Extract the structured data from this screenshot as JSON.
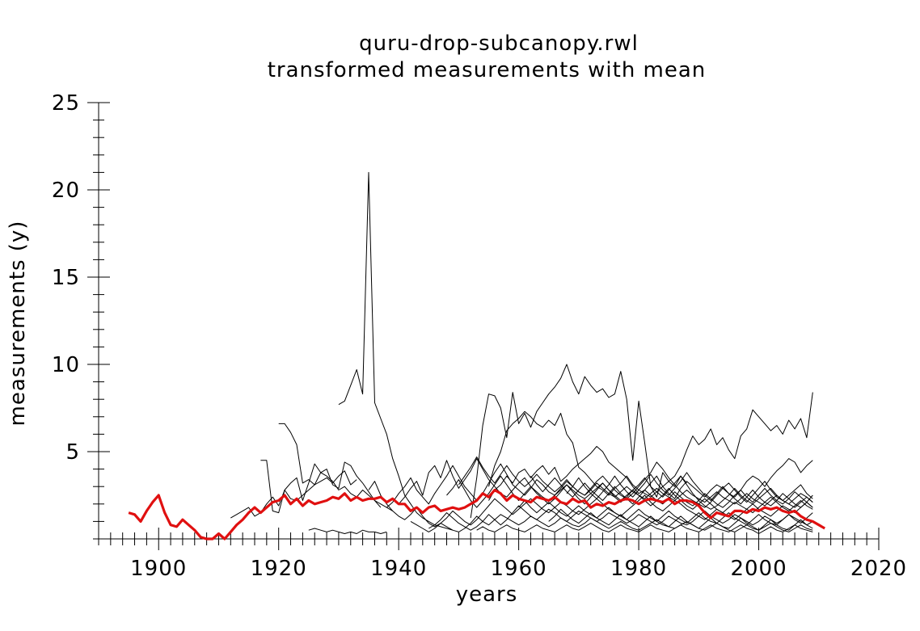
{
  "chart_data": {
    "type": "line",
    "title": "quru-drop-subcanopy.rwl",
    "subtitle": "transformed measurements with mean",
    "xlabel": "years",
    "ylabel": "measurements (y)",
    "xlim": [
      1890,
      2020
    ],
    "ylim": [
      0,
      25
    ],
    "x_ticks": [
      "1900",
      "1920",
      "1940",
      "1960",
      "1980",
      "2000",
      "2020"
    ],
    "y_ticks": [
      "5",
      "10",
      "15",
      "20",
      "25"
    ],
    "grid": false,
    "colors": {
      "series": "#000000",
      "mean": "#e01010"
    },
    "series": [
      {
        "start": 1930,
        "values": [
          7.7,
          7.9,
          8.8,
          9.7,
          8.3,
          21.0,
          7.8,
          6.9,
          6.0,
          4.6,
          3.6,
          2.5,
          2.0,
          1.5,
          1.2,
          1.0,
          0.8,
          0.7,
          0.6,
          0.5
        ]
      },
      {
        "start": 1920,
        "values": [
          6.6,
          6.6,
          6.1,
          5.4,
          3.2,
          3.4,
          3.1,
          3.8,
          3.6,
          3.3,
          2.8,
          3.0,
          2.6,
          2.4,
          2.8,
          2.5,
          2.2,
          2.0,
          1.8,
          1.6
        ]
      },
      {
        "start": 1917,
        "values": [
          4.5,
          4.5,
          1.6,
          1.5,
          2.8,
          3.2,
          3.5,
          2.2,
          3.2,
          4.3,
          3.8,
          4.0,
          3.1,
          2.9,
          4.4,
          4.2,
          3.6,
          3.2,
          2.7,
          2.2,
          1.8
        ]
      },
      {
        "start": 1912,
        "values": [
          1.2,
          1.4,
          1.6,
          1.8,
          1.3,
          1.5,
          2.0,
          2.4,
          1.9,
          2.8,
          2.3,
          2.2,
          2.5,
          2.8,
          3.1,
          3.3,
          3.5,
          3.2,
          3.6,
          3.9,
          3.1,
          3.4
        ]
      },
      {
        "start": 1925,
        "values": [
          0.5,
          0.6,
          0.5,
          0.4,
          0.5,
          0.4,
          0.3,
          0.4,
          0.3,
          0.5,
          0.4,
          0.4,
          0.3,
          0.4
        ]
      },
      {
        "start": 1952,
        "values": [
          1.2,
          3.5,
          6.5,
          8.3,
          8.2,
          7.5,
          5.8,
          8.4,
          6.6,
          7.2,
          6.4,
          7.3,
          7.8,
          8.3,
          8.7,
          9.2,
          10.0,
          9.0,
          8.3,
          9.3,
          8.8,
          8.4,
          8.6,
          8.1,
          8.3,
          9.6,
          8.0,
          4.5,
          7.9,
          5.5,
          3.0,
          2.4,
          3.8,
          3.3,
          3.0,
          3.6,
          3.2
        ]
      },
      {
        "start": 1955,
        "values": [
          3.0,
          4.2,
          5.0,
          6.2,
          6.6,
          6.9,
          7.3,
          7.0,
          6.6,
          6.4,
          6.8,
          6.5,
          7.2,
          6.0,
          5.5,
          4.1,
          3.8,
          3.4,
          3.0,
          2.8,
          2.5,
          2.9,
          3.2,
          3.6,
          3.1,
          2.8,
          2.6,
          2.4,
          2.7,
          3.0,
          3.3,
          3.6,
          4.2,
          5.1,
          5.9,
          5.4,
          5.7,
          6.3,
          5.4,
          5.8,
          5.1,
          4.6,
          5.9,
          6.3,
          7.4,
          7.0,
          6.6,
          6.2,
          6.5,
          6.0,
          6.8,
          6.3,
          6.9,
          5.8,
          8.4
        ]
      },
      {
        "start": 1955,
        "values": [
          2.2,
          2.8,
          3.1,
          3.6,
          3.2,
          3.8,
          4.0,
          3.5,
          3.9,
          4.2,
          3.7,
          4.1,
          3.3,
          3.6,
          4.0,
          4.3,
          4.6,
          4.9,
          5.3,
          5.0,
          4.4,
          4.1,
          3.8,
          3.5,
          3.0,
          2.6,
          2.8,
          3.2,
          3.6,
          3.0,
          2.6,
          2.3,
          2.9,
          3.3,
          3.0,
          2.7,
          2.4,
          2.8,
          3.1,
          2.9,
          2.6,
          2.4,
          2.8,
          3.3,
          3.6,
          3.4,
          3.0,
          3.5,
          3.9,
          4.2,
          4.6,
          4.4,
          3.8,
          4.2,
          4.5
        ]
      },
      {
        "start": 1940,
        "values": [
          2.0,
          2.4,
          2.9,
          3.3,
          2.5,
          3.8,
          4.2,
          3.5,
          4.5,
          3.6,
          2.9,
          3.4,
          3.9,
          4.6,
          4.0,
          3.4,
          3.0,
          2.6,
          2.4,
          2.8,
          3.2,
          3.5,
          3.0,
          2.7,
          2.4,
          2.2,
          2.5,
          2.9,
          3.3,
          3.0,
          2.7,
          2.5,
          2.9,
          3.3,
          3.6,
          3.2,
          2.8,
          2.5,
          2.3,
          2.6,
          3.0,
          3.4,
          3.8,
          4.4,
          4.0,
          3.5,
          3.1,
          2.7,
          2.4,
          2.2,
          2.0,
          1.8,
          2.1,
          2.5,
          2.9,
          3.2,
          2.8,
          2.4,
          2.1,
          2.5,
          2.9,
          3.3,
          2.8,
          2.4,
          2.2,
          2.5,
          2.8,
          3.1,
          2.6,
          2.3
        ]
      },
      {
        "start": 1938,
        "values": [
          1.8,
          2.1,
          2.6,
          3.0,
          3.5,
          2.8,
          2.4,
          2.0,
          2.6,
          3.1,
          3.6,
          4.2,
          3.6,
          3.0,
          2.6,
          2.2,
          2.6,
          3.2,
          3.8,
          4.3,
          3.7,
          3.1,
          2.8,
          2.5,
          2.9,
          3.4,
          3.1,
          2.7,
          2.5,
          2.8,
          3.1,
          2.8,
          2.5,
          2.3,
          2.6,
          2.9,
          3.2,
          2.8,
          2.5,
          2.2,
          2.5,
          2.8,
          3.1,
          3.5,
          3.0,
          2.7,
          2.4,
          2.8,
          3.2,
          3.6,
          3.1,
          2.6,
          2.2,
          1.9,
          1.7,
          1.9,
          2.2,
          2.5,
          2.9,
          2.5,
          2.2,
          2.0,
          2.3,
          2.6,
          2.9,
          2.5,
          2.2,
          2.0,
          2.3,
          2.6,
          2.4,
          2.1
        ]
      },
      {
        "start": 1935,
        "values": [
          2.8,
          3.3,
          2.5,
          2.0,
          1.6,
          1.3,
          1.1,
          1.4,
          1.8,
          1.3,
          0.9,
          0.7,
          0.9,
          1.2,
          1.6,
          1.3,
          1.0,
          0.8,
          1.1,
          1.5,
          1.9,
          2.3,
          2.0,
          1.7,
          1.4,
          1.7,
          2.0,
          2.3,
          2.0,
          1.7,
          1.5,
          1.8,
          2.1,
          1.9,
          1.6,
          1.4,
          1.7,
          2.0,
          2.3,
          2.0,
          1.7,
          1.5,
          1.3,
          1.6,
          1.9,
          2.2,
          2.5,
          2.1,
          1.8,
          1.6,
          1.9,
          2.2,
          2.0,
          1.7,
          1.5,
          1.3,
          1.1,
          1.4,
          1.7,
          1.5,
          1.3,
          1.1,
          1.4,
          1.7,
          2.0,
          1.7,
          1.5,
          1.3,
          1.6,
          1.9,
          1.7,
          1.5,
          1.8,
          2.1,
          1.8
        ]
      },
      {
        "start": 1942,
        "values": [
          1.0,
          0.8,
          0.6,
          0.4,
          0.6,
          0.9,
          0.7,
          0.5,
          0.4,
          0.6,
          0.9,
          1.3,
          1.0,
          0.8,
          1.1,
          1.4,
          1.2,
          1.0,
          0.8,
          1.0,
          1.3,
          1.1,
          0.9,
          0.7,
          0.9,
          1.2,
          1.0,
          0.8,
          0.7,
          0.9,
          1.2,
          1.0,
          0.8,
          0.6,
          0.8,
          1.0,
          0.8,
          0.6,
          0.5,
          0.7,
          0.9,
          1.1,
          0.9,
          0.7,
          0.6,
          0.8,
          1.0,
          0.8,
          0.6,
          0.5,
          0.7,
          0.9,
          0.7,
          0.5,
          0.4,
          0.6,
          0.8,
          0.6,
          0.5,
          0.7,
          0.9,
          0.7,
          0.5,
          0.4,
          0.6,
          0.8,
          0.6,
          0.5
        ]
      },
      {
        "start": 1945,
        "values": [
          0.6,
          0.8,
          1.1,
          1.5,
          1.2,
          0.9,
          0.7,
          0.5,
          0.7,
          1.0,
          1.4,
          1.1,
          0.8,
          1.1,
          1.5,
          1.9,
          1.6,
          1.3,
          1.1,
          1.4,
          1.7,
          1.5,
          1.2,
          1.0,
          1.3,
          1.6,
          1.4,
          1.2,
          1.0,
          1.2,
          1.5,
          1.3,
          1.1,
          0.9,
          1.1,
          1.4,
          1.2,
          1.0,
          0.8,
          1.0,
          1.3,
          1.1,
          0.9,
          0.8,
          1.0,
          1.3,
          1.6,
          1.3,
          1.1,
          0.9,
          1.1,
          1.4,
          1.2,
          1.0,
          0.8,
          1.0,
          1.3,
          1.1,
          0.9,
          1.1,
          1.4,
          1.2,
          1.0,
          0.8,
          1.0
        ]
      },
      {
        "start": 1948,
        "values": [
          2.5,
          2.9,
          3.4,
          2.8,
          2.2,
          1.8,
          2.2,
          2.6,
          3.1,
          3.6,
          3.1,
          2.6,
          2.2,
          2.6,
          3.0,
          2.6,
          2.3,
          2.0,
          2.3,
          2.7,
          3.1,
          2.7,
          2.3,
          2.0,
          2.4,
          2.8,
          3.2,
          2.8,
          2.4,
          2.1,
          2.4,
          2.8,
          2.5,
          2.2,
          1.9,
          2.2,
          2.5,
          2.9,
          2.5,
          2.2,
          1.9,
          1.7,
          2.0,
          2.3,
          2.0,
          1.7,
          1.5,
          1.8,
          2.1,
          1.9,
          1.7,
          1.5,
          1.8,
          2.1,
          2.4,
          2.1,
          1.8,
          1.6,
          1.9,
          2.2,
          1.9,
          1.7
        ]
      },
      {
        "start": 1950,
        "values": [
          3.1,
          3.6,
          4.1,
          4.7,
          4.1,
          3.6,
          3.2,
          3.7,
          4.2,
          3.7,
          3.3,
          3.0,
          3.3,
          3.7,
          3.3,
          3.0,
          2.7,
          3.0,
          3.4,
          3.0,
          2.7,
          2.5,
          2.8,
          3.2,
          2.9,
          2.6,
          2.4,
          2.7,
          3.0,
          2.7,
          2.5,
          2.3,
          2.6,
          2.9,
          2.6,
          2.4,
          2.2,
          2.5,
          2.8,
          2.5,
          2.3,
          2.1,
          2.4,
          2.7,
          2.4,
          2.2,
          2.0,
          2.3,
          2.6,
          2.3,
          2.1,
          1.9,
          2.2,
          2.5,
          2.2,
          2.0,
          1.8,
          2.1,
          2.4,
          2.1
        ]
      },
      {
        "start": 1953,
        "values": [
          0.5,
          0.7,
          0.5,
          0.4,
          0.6,
          0.8,
          0.6,
          0.5,
          0.4,
          0.6,
          0.8,
          0.6,
          0.5,
          0.4,
          0.6,
          0.8,
          0.6,
          0.5,
          0.7,
          0.9,
          0.7,
          0.5,
          0.4,
          0.6,
          0.8,
          0.6,
          0.5,
          0.4,
          0.6,
          0.8,
          0.6,
          0.5,
          0.4,
          0.6,
          0.8,
          0.6,
          0.5,
          0.4,
          0.6,
          0.8,
          0.6,
          0.5,
          0.4,
          0.6,
          0.8,
          0.6,
          0.5,
          0.3,
          0.5,
          0.7,
          0.5,
          0.4,
          0.6,
          0.8,
          0.6,
          0.5,
          0.4
        ]
      },
      {
        "start": 1960,
        "values": [
          1.8,
          2.2,
          1.8,
          1.5,
          1.8,
          2.1,
          1.8,
          1.5,
          1.3,
          1.6,
          1.9,
          1.6,
          1.4,
          1.2,
          1.5,
          1.8,
          1.5,
          1.3,
          1.1,
          1.4,
          1.7,
          1.4,
          1.2,
          1.0,
          1.3,
          1.6,
          1.3,
          1.1,
          0.9,
          1.2,
          1.5,
          1.2,
          1.0,
          0.9,
          1.2,
          1.5,
          1.2,
          1.0,
          0.8,
          1.1,
          1.4,
          1.1,
          0.9,
          0.8,
          1.1,
          1.4,
          1.1,
          0.9,
          1.2,
          1.5
        ]
      },
      {
        "start": 1962,
        "values": [
          3.6,
          3.1,
          2.7,
          3.1,
          3.5,
          3.1,
          2.7,
          2.4,
          2.8,
          3.2,
          2.8,
          2.5,
          2.2,
          2.6,
          3.0,
          2.6,
          2.3,
          2.0,
          2.4,
          2.8,
          2.5,
          2.2,
          2.0,
          2.3,
          2.7,
          2.4,
          2.1,
          1.9,
          2.2,
          2.6,
          2.3,
          2.0,
          1.8,
          2.1,
          2.5,
          2.8,
          2.4,
          2.1,
          2.5,
          2.9,
          2.5,
          2.2,
          2.0,
          2.3,
          2.7,
          2.4,
          2.1,
          1.8
        ]
      },
      {
        "start": 1965,
        "values": [
          1.0,
          1.3,
          1.7,
          1.4,
          1.1,
          0.9,
          1.2,
          1.5,
          1.2,
          1.0,
          0.8,
          1.1,
          1.4,
          1.1,
          0.9,
          0.7,
          1.0,
          1.3,
          1.0,
          0.8,
          0.7,
          1.0,
          1.3,
          1.0,
          0.8,
          0.6,
          0.9,
          1.2,
          0.9,
          0.7,
          0.6,
          0.9,
          1.2,
          0.9,
          0.7,
          0.5,
          0.8,
          1.1,
          0.8,
          0.6,
          0.5,
          0.8,
          1.1,
          0.8,
          0.6
        ]
      },
      {
        "start": 1968,
        "values": [
          2.6,
          3.0,
          3.5,
          3.0,
          2.6,
          2.3,
          2.7,
          3.1,
          3.6,
          3.1,
          2.7,
          2.4,
          2.8,
          3.2,
          3.7,
          3.2,
          2.8,
          2.5,
          2.9,
          3.3,
          3.8,
          3.3,
          2.9,
          2.5,
          2.2,
          2.6,
          3.0,
          2.6,
          2.3,
          2.0,
          2.4,
          2.8,
          2.4,
          2.1,
          1.9,
          2.2,
          2.6,
          2.3,
          2.0,
          1.8,
          2.1,
          2.5
        ]
      }
    ],
    "mean": {
      "name": "mean",
      "start": 1895,
      "values": [
        1.5,
        1.4,
        1.0,
        1.6,
        2.1,
        2.5,
        1.5,
        0.8,
        0.7,
        1.1,
        0.8,
        0.5,
        0.1,
        0.0,
        0.0,
        0.3,
        0.0,
        0.4,
        0.8,
        1.1,
        1.5,
        1.8,
        1.5,
        1.8,
        2.1,
        2.2,
        2.5,
        2.0,
        2.3,
        1.9,
        2.2,
        2.0,
        2.1,
        2.2,
        2.4,
        2.3,
        2.6,
        2.2,
        2.4,
        2.2,
        2.3,
        2.3,
        2.4,
        2.1,
        2.3,
        2.0,
        2.0,
        1.6,
        1.8,
        1.5,
        1.8,
        1.9,
        1.6,
        1.7,
        1.8,
        1.7,
        1.8,
        2.0,
        2.2,
        2.6,
        2.4,
        2.8,
        2.6,
        2.2,
        2.5,
        2.3,
        2.2,
        2.1,
        2.4,
        2.3,
        2.2,
        2.4,
        2.1,
        2.0,
        2.3,
        2.1,
        2.2,
        1.8,
        2.0,
        1.9,
        2.1,
        2.0,
        2.2,
        2.3,
        2.2,
        2.0,
        2.2,
        2.3,
        2.2,
        2.1,
        2.3,
        2.0,
        2.2,
        2.2,
        2.1,
        1.9,
        1.5,
        1.2,
        1.5,
        1.4,
        1.3,
        1.6,
        1.6,
        1.5,
        1.7,
        1.6,
        1.8,
        1.7,
        1.8,
        1.6,
        1.5,
        1.6,
        1.3,
        1.1,
        1.0,
        0.8,
        0.6
      ]
    }
  }
}
